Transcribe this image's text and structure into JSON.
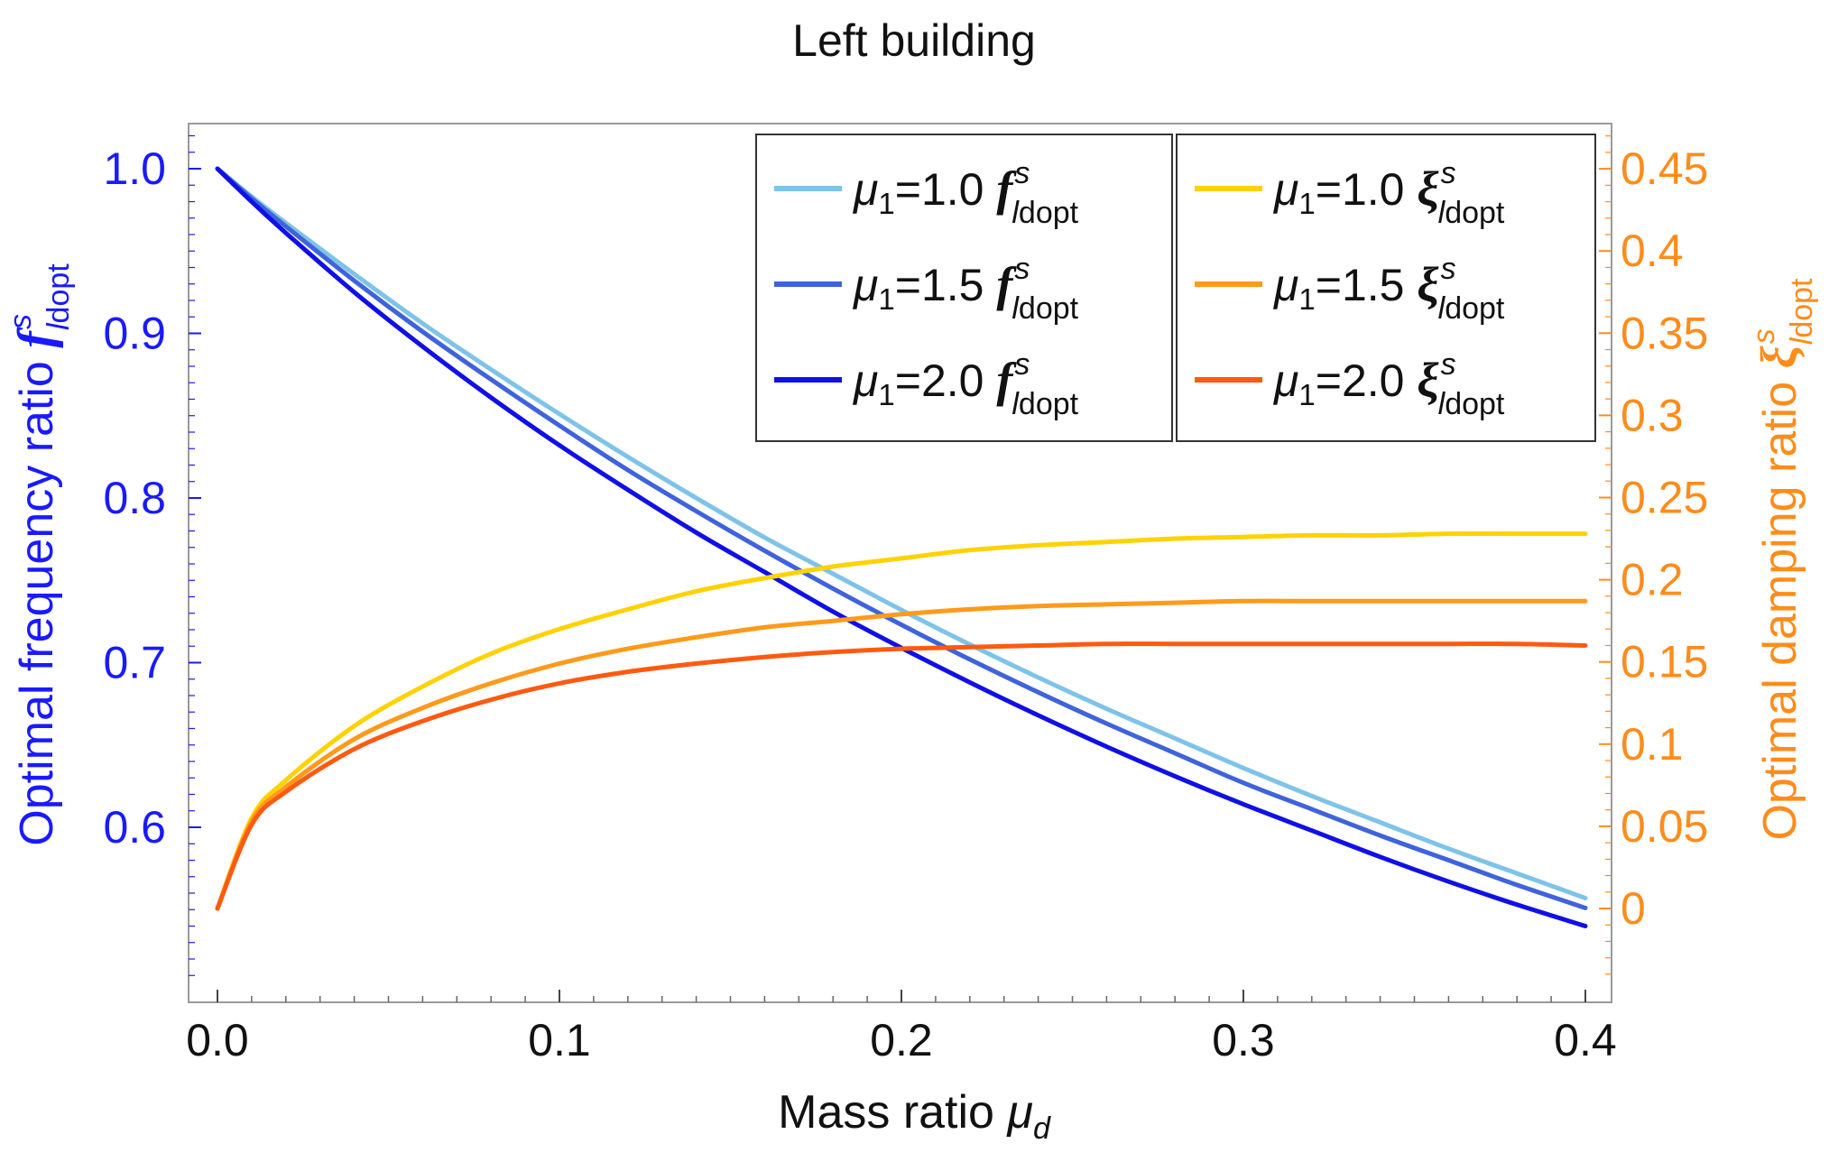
{
  "chart_data": {
    "type": "line",
    "title": "Left building",
    "xlabel": {
      "text": "Mass ratio ",
      "symbol": "μ",
      "sub": "d"
    },
    "ylabel_left": {
      "text": "Optimal frequency ratio ",
      "symbol": "f",
      "sup": "s",
      "sub_italic": "l",
      "sub": "dopt"
    },
    "ylabel_right": {
      "text": "Optimal damping ratio ",
      "symbol": "ξ",
      "sup": "s",
      "sub_italic": "l",
      "sub": "dopt"
    },
    "xlim": [
      0,
      0.4
    ],
    "ylim_left": [
      0.5,
      1.025
    ],
    "ylim_right": [
      -0.05,
      0.475
    ],
    "x_ticks": [
      0.0,
      0.1,
      0.2,
      0.3,
      0.4
    ],
    "x_tick_labels": [
      "0.0",
      "0.1",
      "0.2",
      "0.3",
      "0.4"
    ],
    "y_left_ticks": [
      0.6,
      0.7,
      0.8,
      0.9,
      1.0
    ],
    "y_left_tick_labels": [
      "0.6",
      "0.7",
      "0.8",
      "0.9",
      "1.0"
    ],
    "y_right_ticks": [
      0,
      0.05,
      0.1,
      0.15,
      0.2,
      0.25,
      0.3,
      0.35,
      0.4,
      0.45
    ],
    "y_right_tick_labels": [
      "0",
      "0.05",
      "0.1",
      "0.15",
      "0.2",
      "0.25",
      "0.3",
      "0.35",
      "0.4",
      "0.45"
    ],
    "grid": false,
    "legend_position": "top-right",
    "colors": {
      "left_axis": "#1a1aff",
      "right_axis": "#ff8c1a",
      "frame": "#9a9a9a"
    },
    "x": [
      0,
      0.01,
      0.02,
      0.04,
      0.06,
      0.08,
      0.1,
      0.12,
      0.14,
      0.16,
      0.18,
      0.2,
      0.22,
      0.24,
      0.26,
      0.28,
      0.3,
      0.32,
      0.34,
      0.36,
      0.38,
      0.4
    ],
    "series": [
      {
        "name": "μ1=1.0 f",
        "axis": "left",
        "color": "#7ec3e8",
        "values": [
          1.0,
          0.983,
          0.967,
          0.936,
          0.906,
          0.878,
          0.851,
          0.825,
          0.8,
          0.776,
          0.754,
          0.732,
          0.711,
          0.691,
          0.672,
          0.654,
          0.636,
          0.619,
          0.603,
          0.587,
          0.572,
          0.557
        ]
      },
      {
        "name": "μ1=1.5 f",
        "axis": "left",
        "color": "#3f63dd",
        "values": [
          1.0,
          0.982,
          0.965,
          0.932,
          0.901,
          0.872,
          0.844,
          0.817,
          0.792,
          0.768,
          0.745,
          0.723,
          0.702,
          0.682,
          0.663,
          0.645,
          0.627,
          0.611,
          0.595,
          0.58,
          0.565,
          0.551
        ]
      },
      {
        "name": "μ1=2.0 f",
        "axis": "left",
        "color": "#1010e6",
        "values": [
          1.0,
          0.98,
          0.961,
          0.925,
          0.892,
          0.861,
          0.832,
          0.805,
          0.779,
          0.755,
          0.731,
          0.709,
          0.688,
          0.668,
          0.649,
          0.631,
          0.614,
          0.598,
          0.582,
          0.567,
          0.553,
          0.54
        ]
      },
      {
        "name": "μ1=1.0 ξ",
        "axis": "right",
        "color": "#ffd200",
        "values": [
          0.0,
          0.055,
          0.078,
          0.111,
          0.135,
          0.155,
          0.17,
          0.182,
          0.193,
          0.201,
          0.208,
          0.213,
          0.218,
          0.221,
          0.223,
          0.225,
          0.226,
          0.227,
          0.227,
          0.228,
          0.228,
          0.228
        ]
      },
      {
        "name": "μ1=1.5 ξ",
        "axis": "right",
        "color": "#ff9a1a",
        "values": [
          0.0,
          0.053,
          0.074,
          0.103,
          0.122,
          0.137,
          0.149,
          0.158,
          0.165,
          0.171,
          0.175,
          0.179,
          0.182,
          0.184,
          0.185,
          0.186,
          0.187,
          0.187,
          0.187,
          0.187,
          0.187,
          0.187
        ]
      },
      {
        "name": "μ1=2.0 ξ",
        "axis": "right",
        "color": "#ff5a10",
        "values": [
          0.0,
          0.051,
          0.071,
          0.097,
          0.114,
          0.127,
          0.137,
          0.144,
          0.149,
          0.153,
          0.156,
          0.158,
          0.159,
          0.16,
          0.161,
          0.161,
          0.161,
          0.161,
          0.161,
          0.161,
          0.161,
          0.16
        ]
      }
    ],
    "legend": {
      "left_box": [
        {
          "mu": "μ",
          "sub1": "1",
          "eq": "=1.0",
          "sym": "f",
          "sup": "s",
          "subl": "l",
          "sub": "dopt",
          "color": "#7ec3e8"
        },
        {
          "mu": "μ",
          "sub1": "1",
          "eq": "=1.5",
          "sym": "f",
          "sup": "s",
          "subl": "l",
          "sub": "dopt",
          "color": "#3f63dd"
        },
        {
          "mu": "μ",
          "sub1": "1",
          "eq": "=2.0",
          "sym": "f",
          "sup": "s",
          "subl": "l",
          "sub": "dopt",
          "color": "#1010e6"
        }
      ],
      "right_box": [
        {
          "mu": "μ",
          "sub1": "1",
          "eq": "=1.0",
          "sym": "ξ",
          "sup": "s",
          "subl": "l",
          "sub": "dopt",
          "color": "#ffd200"
        },
        {
          "mu": "μ",
          "sub1": "1",
          "eq": "=1.5",
          "sym": "ξ",
          "sup": "s",
          "subl": "l",
          "sub": "dopt",
          "color": "#ff9a1a"
        },
        {
          "mu": "μ",
          "sub1": "1",
          "eq": "=2.0",
          "sym": "ξ",
          "sup": "s",
          "subl": "l",
          "sub": "dopt",
          "color": "#ff5a10"
        }
      ]
    }
  }
}
